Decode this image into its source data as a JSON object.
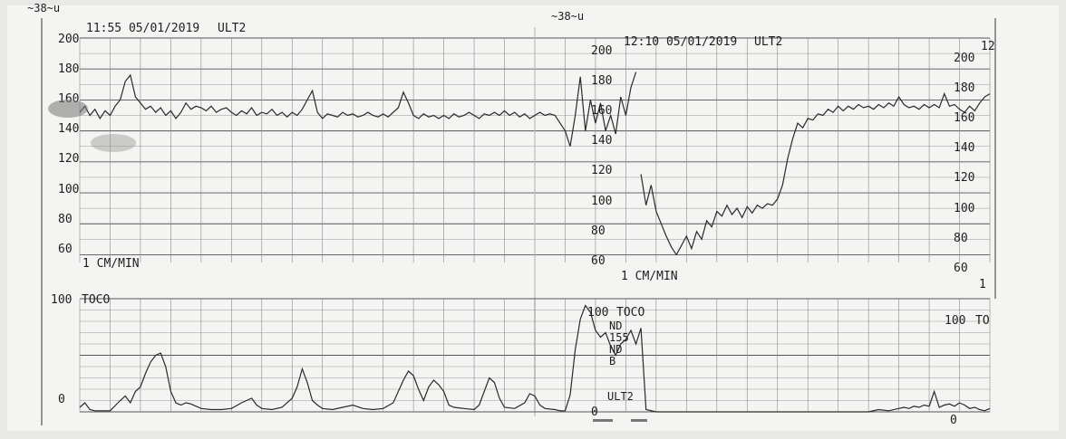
{
  "strip_marks": {
    "top_left": "~38~u",
    "top_center": "~38~u"
  },
  "segments": [
    {
      "timestamp": "11:55 05/01/2019",
      "channel": "ULT2",
      "toco_label": "TOCO",
      "speed": "1 CM/MIN",
      "fhr_ticks": [
        "200",
        "180",
        "160",
        "140",
        "120",
        "100",
        "80",
        "60"
      ],
      "toco_ticks": [
        "100",
        "0"
      ]
    },
    {
      "timestamp": "12:10 05/01/2019",
      "channel": "ULT2",
      "toco_label": "TOCO",
      "speed": "1 CM/MIN",
      "fhr_ticks": [
        "200",
        "180",
        "160",
        "140",
        "120",
        "100",
        "80",
        "60"
      ],
      "toco_ticks": [
        "100",
        "0"
      ],
      "annotations": [
        "ND",
        "155",
        "ND",
        "B",
        "ULT2"
      ]
    },
    {
      "timestamp": "12",
      "toco_label": "TO",
      "speed": "1",
      "fhr_ticks": [
        "200",
        "180",
        "160",
        "140",
        "120",
        "100",
        "80",
        "60"
      ],
      "toco_ticks": [
        "100",
        "0"
      ]
    }
  ],
  "chart_data": {
    "type": "line",
    "title": "",
    "xlabel": "",
    "ylabel": "",
    "x_units": "minutes from 11:55",
    "fhr": {
      "name": "",
      "ylim": [
        55,
        200
      ],
      "points": [
        [
          0,
          152
        ],
        [
          0.5,
          156
        ],
        [
          1,
          150
        ],
        [
          1.5,
          154
        ],
        [
          2,
          148
        ],
        [
          2.5,
          153
        ],
        [
          3,
          150
        ],
        [
          3.5,
          156
        ],
        [
          4,
          160
        ],
        [
          4.5,
          172
        ],
        [
          5,
          176
        ],
        [
          5.5,
          162
        ],
        [
          6,
          158
        ],
        [
          6.5,
          154
        ],
        [
          7,
          156
        ],
        [
          7.5,
          152
        ],
        [
          8,
          155
        ],
        [
          8.5,
          150
        ],
        [
          9,
          153
        ],
        [
          9.5,
          148
        ],
        [
          10,
          152
        ],
        [
          10.5,
          158
        ],
        [
          11,
          154
        ],
        [
          11.5,
          156
        ],
        [
          12,
          155
        ],
        [
          12.5,
          153
        ],
        [
          13,
          156
        ],
        [
          13.5,
          152
        ],
        [
          14,
          154
        ],
        [
          14.5,
          155
        ],
        [
          15,
          152
        ],
        [
          15.5,
          150
        ],
        [
          16,
          153
        ],
        [
          16.5,
          151
        ],
        [
          17,
          155
        ],
        [
          17.5,
          150
        ],
        [
          18,
          152
        ],
        [
          18.5,
          151
        ],
        [
          19,
          154
        ],
        [
          19.5,
          150
        ],
        [
          20,
          152
        ],
        [
          20.5,
          149
        ],
        [
          21,
          152
        ],
        [
          21.5,
          150
        ],
        [
          22,
          154
        ],
        [
          22.5,
          160
        ],
        [
          23,
          166
        ],
        [
          23.5,
          152
        ],
        [
          24,
          148
        ],
        [
          24.5,
          151
        ],
        [
          25,
          150
        ],
        [
          25.5,
          149
        ],
        [
          26,
          152
        ],
        [
          26.5,
          150
        ],
        [
          27,
          151
        ],
        [
          27.5,
          149
        ],
        [
          28,
          150
        ],
        [
          28.5,
          152
        ],
        [
          29,
          150
        ],
        [
          29.5,
          149
        ],
        [
          30,
          151
        ],
        [
          30.5,
          149
        ],
        [
          31,
          152
        ],
        [
          31.5,
          155
        ],
        [
          32,
          165
        ],
        [
          32.5,
          158
        ],
        [
          33,
          150
        ],
        [
          33.5,
          148
        ],
        [
          34,
          151
        ],
        [
          34.5,
          149
        ],
        [
          35,
          150
        ],
        [
          35.5,
          148
        ],
        [
          36,
          150
        ],
        [
          36.5,
          148
        ],
        [
          37,
          151
        ],
        [
          37.5,
          149
        ],
        [
          38,
          150
        ],
        [
          38.5,
          152
        ],
        [
          39,
          150
        ],
        [
          39.5,
          148
        ],
        [
          40,
          151
        ],
        [
          40.5,
          150
        ],
        [
          41,
          152
        ],
        [
          41.5,
          150
        ],
        [
          42,
          153
        ],
        [
          42.5,
          150
        ],
        [
          43,
          152
        ],
        [
          43.5,
          149
        ],
        [
          44,
          151
        ],
        [
          44.5,
          148
        ],
        [
          45,
          150
        ],
        [
          45.5,
          152
        ],
        [
          46,
          150
        ],
        [
          46.5,
          151
        ],
        [
          47,
          150
        ],
        [
          47.5,
          145
        ],
        [
          48,
          140
        ],
        [
          48.5,
          130
        ],
        [
          49,
          150
        ],
        [
          49.5,
          175
        ],
        [
          50,
          140
        ],
        [
          50.5,
          160
        ],
        [
          51,
          145
        ],
        [
          51.5,
          158
        ],
        [
          52,
          140
        ],
        [
          52.5,
          150
        ],
        [
          53,
          138
        ],
        [
          53.5,
          162
        ],
        [
          54,
          150
        ],
        [
          54.5,
          168
        ],
        [
          55,
          178
        ],
        [
          55.5,
          112
        ],
        [
          56,
          92
        ],
        [
          56.5,
          105
        ],
        [
          57,
          88
        ],
        [
          57.5,
          80
        ],
        [
          58,
          72
        ],
        [
          58.5,
          65
        ],
        [
          59,
          60
        ],
        [
          59.5,
          66
        ],
        [
          60,
          72
        ],
        [
          60.5,
          64
        ],
        [
          61,
          75
        ],
        [
          61.5,
          70
        ],
        [
          62,
          82
        ],
        [
          62.5,
          78
        ],
        [
          63,
          88
        ],
        [
          63.5,
          85
        ],
        [
          64,
          92
        ],
        [
          64.5,
          86
        ],
        [
          65,
          90
        ],
        [
          65.5,
          84
        ],
        [
          66,
          91
        ],
        [
          66.5,
          87
        ],
        [
          67,
          92
        ],
        [
          67.5,
          90
        ],
        [
          68,
          93
        ],
        [
          68.5,
          92
        ],
        [
          69,
          96
        ],
        [
          69.5,
          105
        ],
        [
          70,
          122
        ],
        [
          70.5,
          135
        ],
        [
          71,
          145
        ],
        [
          71.5,
          142
        ],
        [
          72,
          148
        ],
        [
          72.5,
          147
        ],
        [
          73,
          151
        ],
        [
          73.5,
          150
        ],
        [
          74,
          154
        ],
        [
          74.5,
          152
        ],
        [
          75,
          156
        ],
        [
          75.5,
          153
        ],
        [
          76,
          156
        ],
        [
          76.5,
          154
        ],
        [
          77,
          157
        ],
        [
          77.5,
          155
        ],
        [
          78,
          156
        ],
        [
          78.5,
          154
        ],
        [
          79,
          157
        ],
        [
          79.5,
          155
        ],
        [
          80,
          158
        ],
        [
          80.5,
          156
        ],
        [
          81,
          162
        ],
        [
          81.5,
          157
        ],
        [
          82,
          155
        ],
        [
          82.5,
          156
        ],
        [
          83,
          154
        ],
        [
          83.5,
          157
        ],
        [
          84,
          155
        ],
        [
          84.5,
          157
        ],
        [
          85,
          155
        ],
        [
          85.5,
          164
        ],
        [
          86,
          156
        ],
        [
          86.5,
          157
        ],
        [
          87,
          154
        ],
        [
          87.5,
          152
        ],
        [
          88,
          156
        ],
        [
          88.5,
          153
        ],
        [
          89,
          158
        ],
        [
          89.5,
          162
        ],
        [
          90,
          164
        ]
      ]
    },
    "toco": {
      "name": "",
      "ylim": [
        0,
        100
      ],
      "points": [
        [
          0,
          4
        ],
        [
          0.5,
          8
        ],
        [
          1,
          2
        ],
        [
          1.5,
          1
        ],
        [
          2,
          1
        ],
        [
          3,
          1
        ],
        [
          4,
          10
        ],
        [
          4.5,
          14
        ],
        [
          5,
          8
        ],
        [
          5.5,
          18
        ],
        [
          6,
          22
        ],
        [
          6.5,
          34
        ],
        [
          7,
          44
        ],
        [
          7.5,
          50
        ],
        [
          8,
          52
        ],
        [
          8.5,
          40
        ],
        [
          9,
          18
        ],
        [
          9.5,
          8
        ],
        [
          10,
          6
        ],
        [
          10.5,
          8
        ],
        [
          11,
          7
        ],
        [
          12,
          3
        ],
        [
          13,
          2
        ],
        [
          14,
          2
        ],
        [
          15,
          3
        ],
        [
          16,
          8
        ],
        [
          17,
          12
        ],
        [
          17.5,
          6
        ],
        [
          18,
          3
        ],
        [
          19,
          2
        ],
        [
          20,
          4
        ],
        [
          21,
          12
        ],
        [
          21.5,
          22
        ],
        [
          22,
          38
        ],
        [
          22.5,
          26
        ],
        [
          23,
          10
        ],
        [
          23.5,
          6
        ],
        [
          24,
          3
        ],
        [
          25,
          2
        ],
        [
          26,
          4
        ],
        [
          27,
          6
        ],
        [
          28,
          3
        ],
        [
          29,
          2
        ],
        [
          30,
          3
        ],
        [
          31,
          8
        ],
        [
          31.5,
          18
        ],
        [
          32,
          28
        ],
        [
          32.5,
          36
        ],
        [
          33,
          32
        ],
        [
          33.5,
          20
        ],
        [
          34,
          10
        ],
        [
          34.5,
          22
        ],
        [
          35,
          28
        ],
        [
          35.5,
          24
        ],
        [
          36,
          18
        ],
        [
          36.5,
          6
        ],
        [
          37,
          4
        ],
        [
          38,
          3
        ],
        [
          39,
          2
        ],
        [
          39.5,
          6
        ],
        [
          40,
          18
        ],
        [
          40.5,
          30
        ],
        [
          41,
          26
        ],
        [
          41.5,
          12
        ],
        [
          42,
          4
        ],
        [
          43,
          3
        ],
        [
          44,
          8
        ],
        [
          44.5,
          16
        ],
        [
          45,
          14
        ],
        [
          45.5,
          6
        ],
        [
          46,
          3
        ],
        [
          47,
          2
        ],
        [
          47.5,
          1
        ],
        [
          48,
          1
        ],
        [
          48.5,
          15
        ],
        [
          49,
          55
        ],
        [
          49.5,
          82
        ],
        [
          50,
          94
        ],
        [
          50.5,
          88
        ],
        [
          51,
          72
        ],
        [
          51.5,
          66
        ],
        [
          52,
          70
        ],
        [
          52.5,
          58
        ],
        [
          53,
          50
        ],
        [
          53.5,
          60
        ],
        [
          54,
          64
        ],
        [
          54.5,
          72
        ],
        [
          55,
          60
        ],
        [
          55.5,
          74
        ],
        [
          56,
          2
        ],
        [
          57,
          0
        ],
        [
          58,
          0
        ],
        [
          60,
          0
        ],
        [
          62,
          0
        ],
        [
          64,
          0
        ],
        [
          66,
          0
        ],
        [
          68,
          0
        ],
        [
          70,
          0
        ],
        [
          72,
          0
        ],
        [
          74,
          0
        ],
        [
          76,
          0
        ],
        [
          78,
          0
        ],
        [
          79,
          2
        ],
        [
          80,
          1
        ],
        [
          81,
          3
        ],
        [
          81.5,
          4
        ],
        [
          82,
          3
        ],
        [
          82.5,
          5
        ],
        [
          83,
          4
        ],
        [
          83.5,
          6
        ],
        [
          84,
          5
        ],
        [
          84.5,
          18
        ],
        [
          85,
          4
        ],
        [
          85.5,
          6
        ],
        [
          86,
          7
        ],
        [
          86.5,
          5
        ],
        [
          87,
          8
        ],
        [
          87.5,
          6
        ],
        [
          88,
          3
        ],
        [
          88.5,
          4
        ],
        [
          89,
          2
        ],
        [
          89.5,
          1
        ],
        [
          90,
          3
        ]
      ]
    }
  }
}
